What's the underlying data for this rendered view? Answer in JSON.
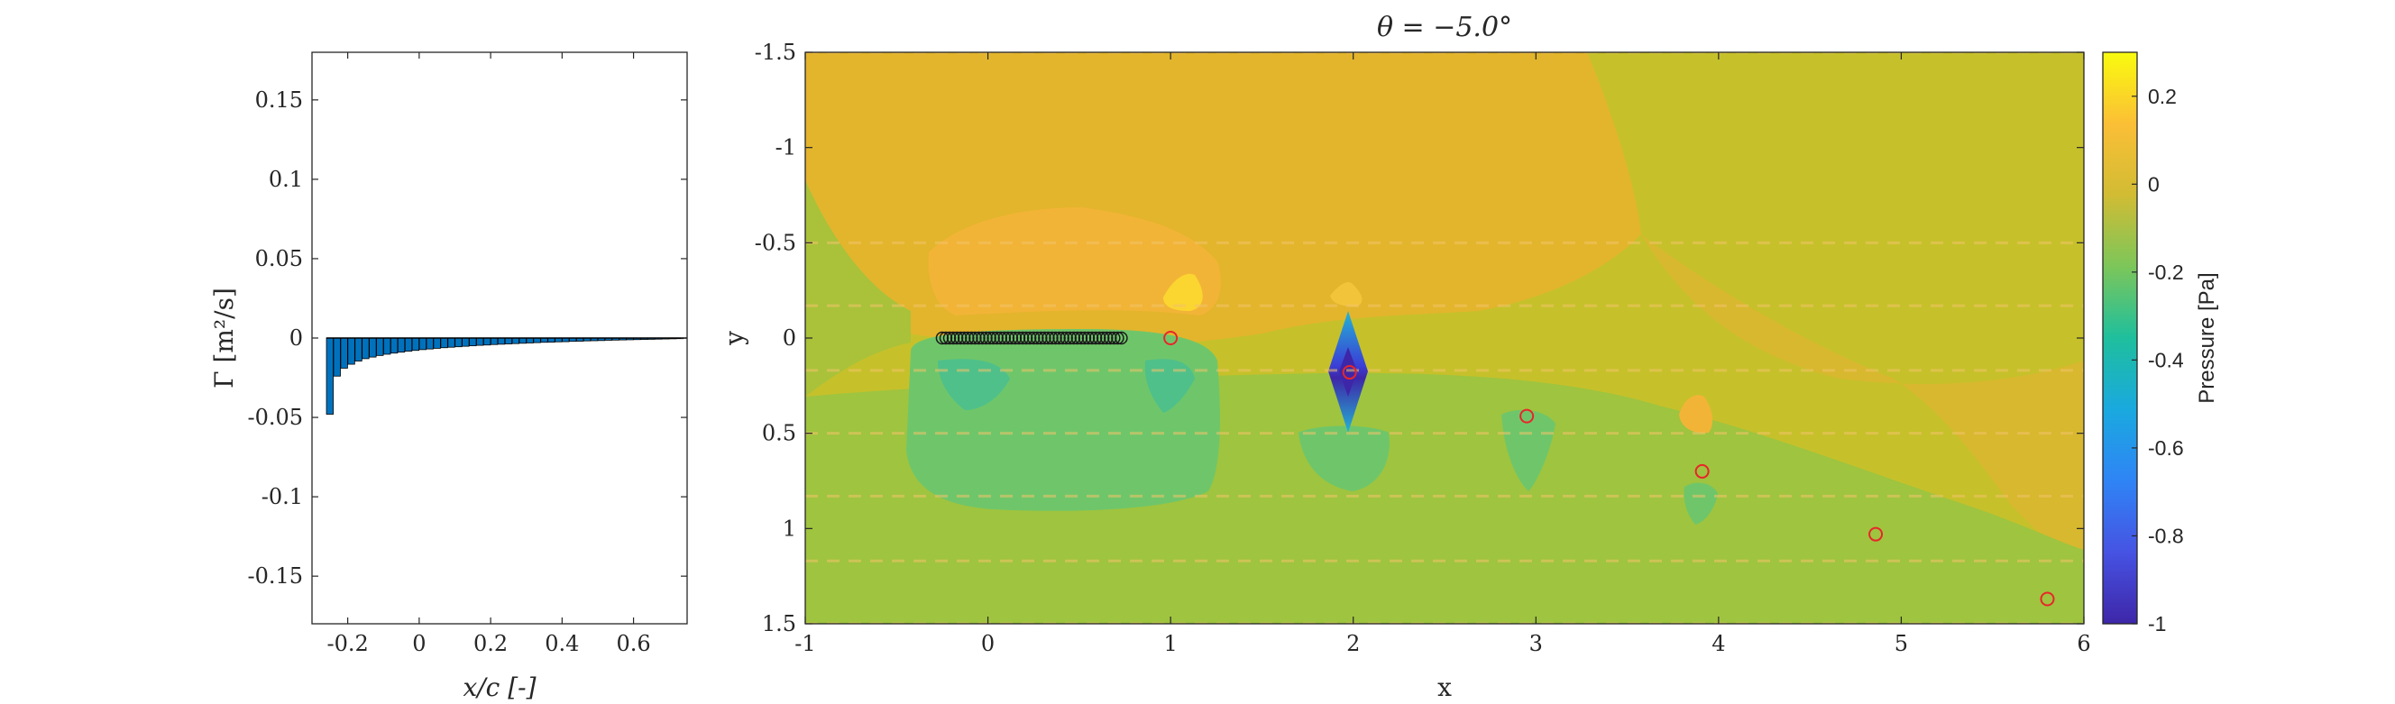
{
  "chart_data": [
    {
      "type": "bar",
      "xlabel": "x/c [-]",
      "ylabel": "Γ [m²/s]",
      "xlim": [
        -0.3,
        0.75
      ],
      "ylim": [
        -0.18,
        0.18
      ],
      "xticks": [
        -0.2,
        0,
        0.2,
        0.4,
        0.6
      ],
      "xtick_labels": [
        "-0.2",
        "0",
        "0.2",
        "0.4",
        "0.6"
      ],
      "yticks": [
        0.15,
        0.1,
        0.05,
        0,
        -0.05,
        -0.1,
        -0.15
      ],
      "ytick_labels": [
        "0.15",
        "0.1",
        "0.05",
        "0",
        "-0.05",
        "-0.1",
        "-0.15"
      ],
      "x": [
        -0.25,
        -0.23,
        -0.21,
        -0.19,
        -0.17,
        -0.15,
        -0.13,
        -0.11,
        -0.09,
        -0.07,
        -0.05,
        -0.03,
        -0.01,
        0.01,
        0.03,
        0.05,
        0.07,
        0.09,
        0.11,
        0.13,
        0.15,
        0.17,
        0.19,
        0.21,
        0.23,
        0.25,
        0.27,
        0.29,
        0.31,
        0.33,
        0.35,
        0.37,
        0.39,
        0.41,
        0.43,
        0.45,
        0.47,
        0.49,
        0.51,
        0.53,
        0.55,
        0.57,
        0.59,
        0.61,
        0.63,
        0.65,
        0.67,
        0.69,
        0.71,
        0.73
      ],
      "values": [
        -0.048,
        -0.024,
        -0.019,
        -0.0165,
        -0.0145,
        -0.013,
        -0.012,
        -0.011,
        -0.0102,
        -0.0095,
        -0.0089,
        -0.0083,
        -0.0078,
        -0.0073,
        -0.0069,
        -0.0065,
        -0.0061,
        -0.0058,
        -0.0055,
        -0.0052,
        -0.0049,
        -0.0046,
        -0.0044,
        -0.0041,
        -0.0039,
        -0.0037,
        -0.0035,
        -0.0033,
        -0.0031,
        -0.0029,
        -0.0027,
        -0.0026,
        -0.0024,
        -0.0023,
        -0.0021,
        -0.002,
        -0.0018,
        -0.0017,
        -0.0016,
        -0.0014,
        -0.0013,
        -0.0012,
        -0.0011,
        -0.001,
        -0.0009,
        -0.0008,
        -0.0007,
        -0.0006,
        -0.0005,
        -0.0004
      ],
      "bar_color": "#0072bd",
      "grid": false
    },
    {
      "type": "heatmap",
      "title": "θ = −5.0°",
      "xlabel": "x",
      "ylabel": "y",
      "xlim": [
        -1,
        6
      ],
      "ylim": [
        -1.5,
        1.5
      ],
      "y_reversed": true,
      "xticks": [
        -1,
        0,
        1,
        2,
        3,
        4,
        5,
        6
      ],
      "xtick_labels": [
        "-1",
        "0",
        "1",
        "2",
        "3",
        "4",
        "5",
        "6"
      ],
      "yticks": [
        -1.5,
        -1,
        -0.5,
        0,
        0.5,
        1,
        1.5
      ],
      "ytick_labels": [
        "-1.5",
        "-1",
        "-0.5",
        "0",
        "0.5",
        "1",
        "1.5"
      ],
      "colorbar": {
        "label": "Pressure [Pa]",
        "limits": [
          -1,
          0.3
        ],
        "ticks": [
          0.2,
          0,
          -0.2,
          -0.4,
          -0.6,
          -0.8,
          -1
        ],
        "tick_labels": [
          "0.2",
          "0",
          "-0.2",
          "-0.4",
          "-0.6",
          "-0.8",
          "-1"
        ],
        "colormap": "parula"
      },
      "body_points_x": [
        -0.25,
        -0.23,
        -0.21,
        -0.19,
        -0.17,
        -0.15,
        -0.13,
        -0.11,
        -0.09,
        -0.07,
        -0.05,
        -0.03,
        -0.01,
        0.01,
        0.03,
        0.05,
        0.07,
        0.09,
        0.11,
        0.13,
        0.15,
        0.17,
        0.19,
        0.21,
        0.23,
        0.25,
        0.27,
        0.29,
        0.31,
        0.33,
        0.35,
        0.37,
        0.39,
        0.41,
        0.43,
        0.45,
        0.47,
        0.49,
        0.51,
        0.53,
        0.55,
        0.57,
        0.59,
        0.61,
        0.63,
        0.65,
        0.67,
        0.69,
        0.71,
        0.73
      ],
      "body_y": 0,
      "vortex_points": [
        {
          "x": 1.0,
          "y": 0.0
        },
        {
          "x": 1.98,
          "y": 0.18
        },
        {
          "x": 2.95,
          "y": 0.41
        },
        {
          "x": 3.91,
          "y": 0.7
        },
        {
          "x": 4.86,
          "y": 1.03
        },
        {
          "x": 5.8,
          "y": 1.37
        }
      ],
      "marker_edge_color": "#e8262a",
      "body_marker_color": "#1a1a1a"
    }
  ]
}
